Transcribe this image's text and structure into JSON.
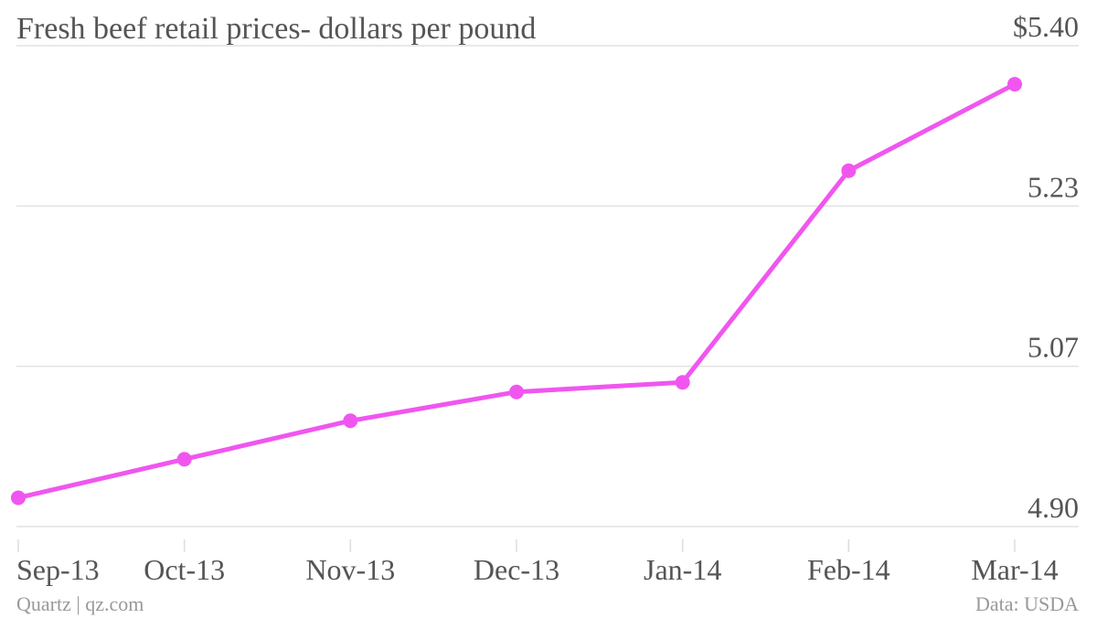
{
  "chart_data": {
    "type": "line",
    "title": "Fresh beef retail prices- dollars per pound",
    "source": "Quartz | qz.com",
    "credit": "Data: USDA",
    "categories": [
      "Sep-13",
      "Oct-13",
      "Nov-13",
      "Dec-13",
      "Jan-14",
      "Feb-14",
      "Mar-14"
    ],
    "values": [
      4.93,
      4.97,
      5.01,
      5.04,
      5.05,
      5.27,
      5.36
    ],
    "color": "#f056ef",
    "ylim": [
      4.9,
      5.4
    ],
    "yticks": [
      {
        "value": 4.9,
        "label": "4.90"
      },
      {
        "value": 5.0667,
        "label": "5.07"
      },
      {
        "value": 5.2333,
        "label": "5.23"
      },
      {
        "value": 5.4,
        "label": "$5.40"
      }
    ],
    "grid": true
  }
}
